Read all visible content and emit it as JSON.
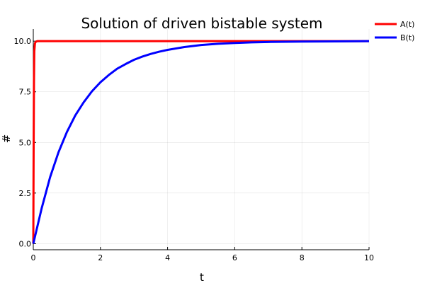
{
  "chart_data": {
    "type": "line",
    "title": "Solution of driven bistable system",
    "xlabel": "t",
    "ylabel": "#",
    "xlim": [
      0,
      10
    ],
    "ylim": [
      -0.3,
      10.6
    ],
    "xticks": [
      0,
      2,
      4,
      6,
      8,
      10
    ],
    "xtick_labels": [
      "0",
      "2",
      "4",
      "6",
      "8",
      "10"
    ],
    "yticks": [
      0,
      2.5,
      5,
      7.5,
      10
    ],
    "ytick_labels": [
      "0.0",
      "2.5",
      "5.0",
      "7.5",
      "10.0"
    ],
    "grid": true,
    "legend": "top-right",
    "series": [
      {
        "name": "A(t)",
        "color": "#ff0000",
        "x": [
          0,
          0.01,
          0.02,
          0.03,
          0.05,
          0.08,
          0.12,
          0.2,
          0.5,
          1,
          2,
          4,
          6,
          8,
          10
        ],
        "y": [
          0,
          4.5,
          8.0,
          9.5,
          9.9,
          9.98,
          10,
          10,
          10,
          10,
          10,
          10,
          10,
          10,
          10
        ]
      },
      {
        "name": "B(t)",
        "color": "#0000ff",
        "x": [
          0,
          0.25,
          0.5,
          0.75,
          1,
          1.25,
          1.5,
          1.75,
          2,
          2.25,
          2.5,
          2.75,
          3,
          3.25,
          3.5,
          3.75,
          4,
          4.5,
          5,
          5.5,
          6,
          6.5,
          7,
          8,
          9,
          10
        ],
        "y": [
          0,
          1.75,
          3.28,
          4.51,
          5.51,
          6.33,
          6.98,
          7.53,
          7.97,
          8.33,
          8.64,
          8.87,
          9.08,
          9.24,
          9.37,
          9.48,
          9.57,
          9.71,
          9.81,
          9.87,
          9.91,
          9.94,
          9.96,
          9.98,
          9.99,
          10
        ]
      }
    ]
  }
}
